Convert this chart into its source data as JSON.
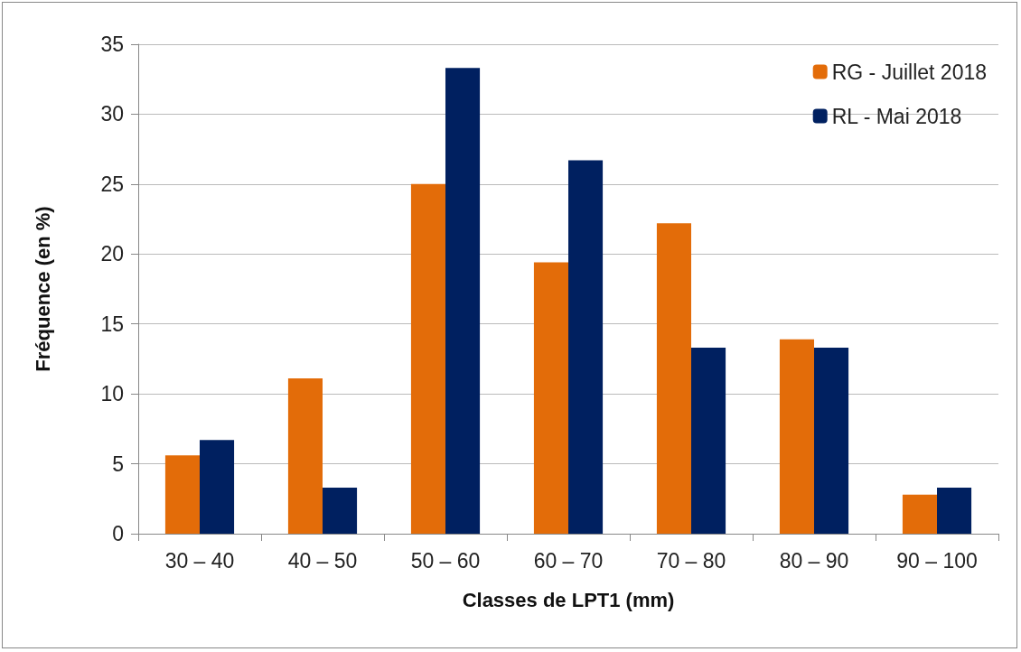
{
  "chart_data": {
    "type": "bar",
    "xlabel": "Classes de LPT1 (mm)",
    "ylabel": "Fréquence (en %)",
    "categories": [
      "30 – 40",
      "40 – 50",
      "50 – 60",
      "60 – 70",
      "70 – 80",
      "80 – 90",
      "90 – 100"
    ],
    "series": [
      {
        "name": "RG - Juillet 2018",
        "color": "#e36c09",
        "values": [
          5.6,
          11.1,
          25,
          19.4,
          22.2,
          13.9,
          2.8
        ]
      },
      {
        "name": "RL - Mai 2018",
        "color": "#002060",
        "values": [
          6.7,
          3.3,
          33.3,
          26.7,
          13.3,
          13.3,
          3.3
        ]
      }
    ],
    "ylim": [
      0,
      35
    ],
    "yticks": [
      0,
      5,
      10,
      15,
      20,
      25,
      30,
      35
    ],
    "grid": "y",
    "legend": "top right"
  }
}
